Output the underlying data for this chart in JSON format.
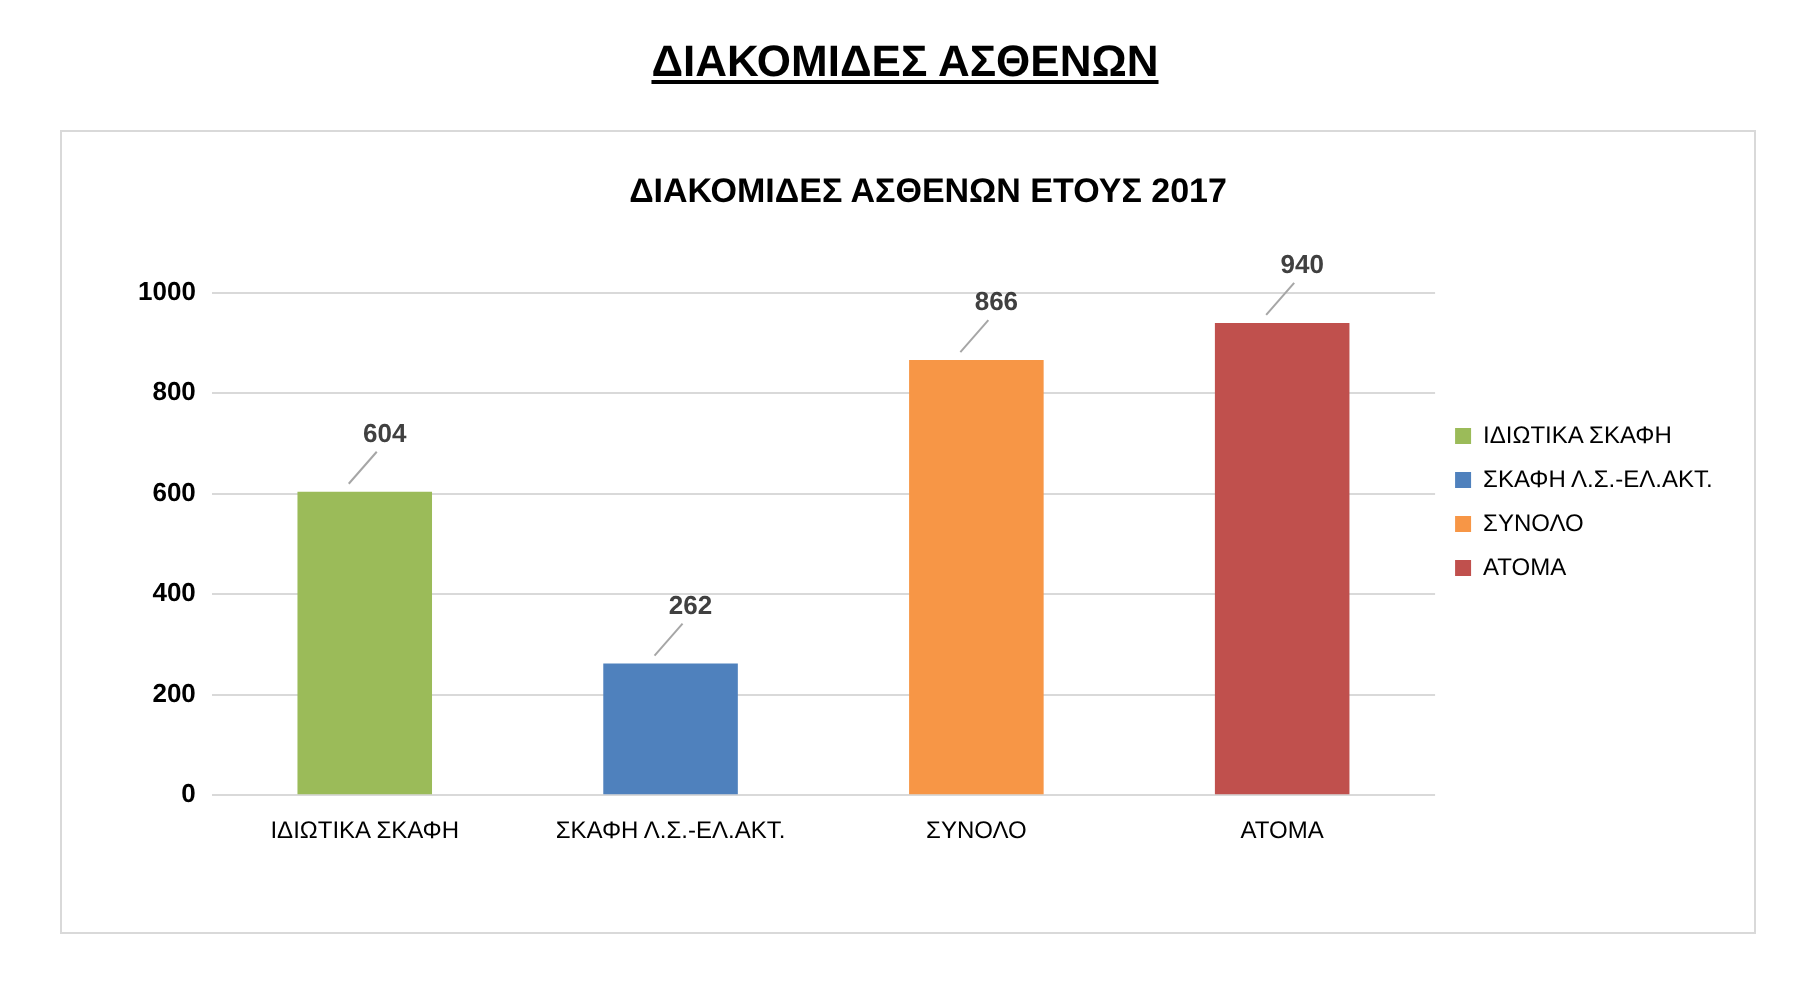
{
  "chart_data": {
    "type": "bar",
    "title": "ΔΙΑΚΟΜΙΔΕΣ ΑΣΘΕΝΩΝ",
    "subtitle": "ΔΙΑΚΟΜΙΔΕΣ ΑΣΘΕΝΩΝ ΕΤΟΥΣ 2017",
    "categories": [
      "ΙΔΙΩΤΙΚΑ ΣΚΑΦΗ",
      "ΣΚΑΦΗ Λ.Σ.-ΕΛ.ΑΚΤ.",
      "ΣΥΝΟΛΟ",
      "ΑΤΟΜΑ"
    ],
    "series": [
      {
        "name": "ΙΔΙΩΤΙΚΑ ΣΚΑΦΗ",
        "color": "#9bbb59",
        "values": [
          604,
          null,
          null,
          null
        ]
      },
      {
        "name": "ΣΚΑΦΗ Λ.Σ.-ΕΛ.ΑΚΤ.",
        "color": "#4f81bd",
        "values": [
          null,
          262,
          null,
          null
        ]
      },
      {
        "name": "ΣΥΝΟΛΟ",
        "color": "#f79646",
        "values": [
          null,
          null,
          866,
          null
        ]
      },
      {
        "name": "ΑΤΟΜΑ",
        "color": "#c0504d",
        "values": [
          null,
          null,
          null,
          940
        ]
      }
    ],
    "ylim": [
      0,
      1000
    ],
    "yticks": [
      0,
      200,
      400,
      600,
      800,
      1000
    ],
    "grid": "y",
    "legend": "right",
    "data_labels": true
  }
}
